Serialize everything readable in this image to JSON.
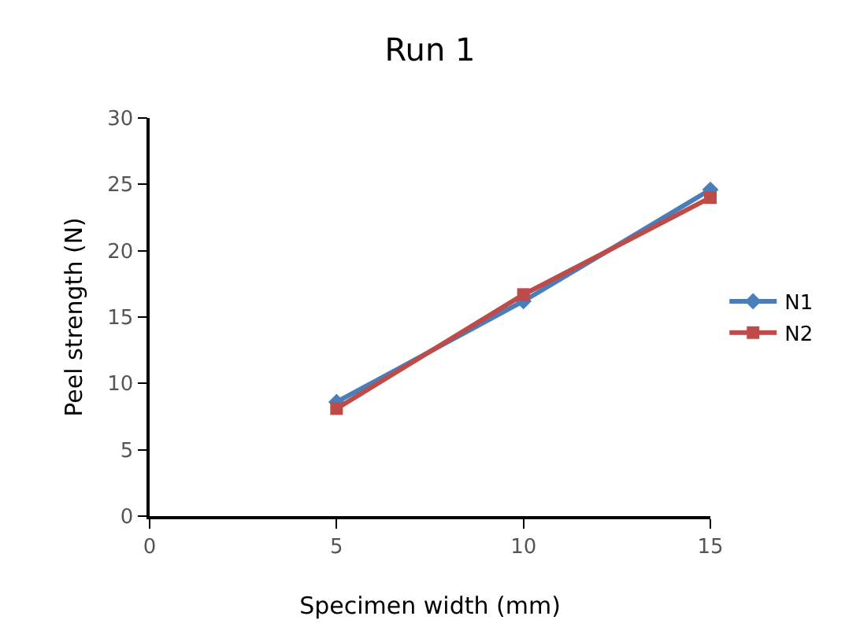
{
  "chart_data": {
    "type": "line",
    "title": "Run 1",
    "xlabel": "Specimen width (mm)",
    "ylabel": "Peel strength (N)",
    "x": [
      5,
      10,
      15
    ],
    "xlim": [
      0,
      15
    ],
    "xticks": [
      0,
      5,
      10,
      15
    ],
    "ylim": [
      0,
      30
    ],
    "yticks": [
      0,
      5,
      10,
      15,
      20,
      25,
      30
    ],
    "grid": false,
    "legend": "right",
    "series": [
      {
        "name": "N1",
        "color": "#4a7ebb",
        "marker": "diamond",
        "values": [
          8.6,
          16.2,
          24.6
        ]
      },
      {
        "name": "N2",
        "color": "#be4b48",
        "marker": "square",
        "values": [
          8.1,
          16.7,
          24.0
        ]
      }
    ]
  }
}
